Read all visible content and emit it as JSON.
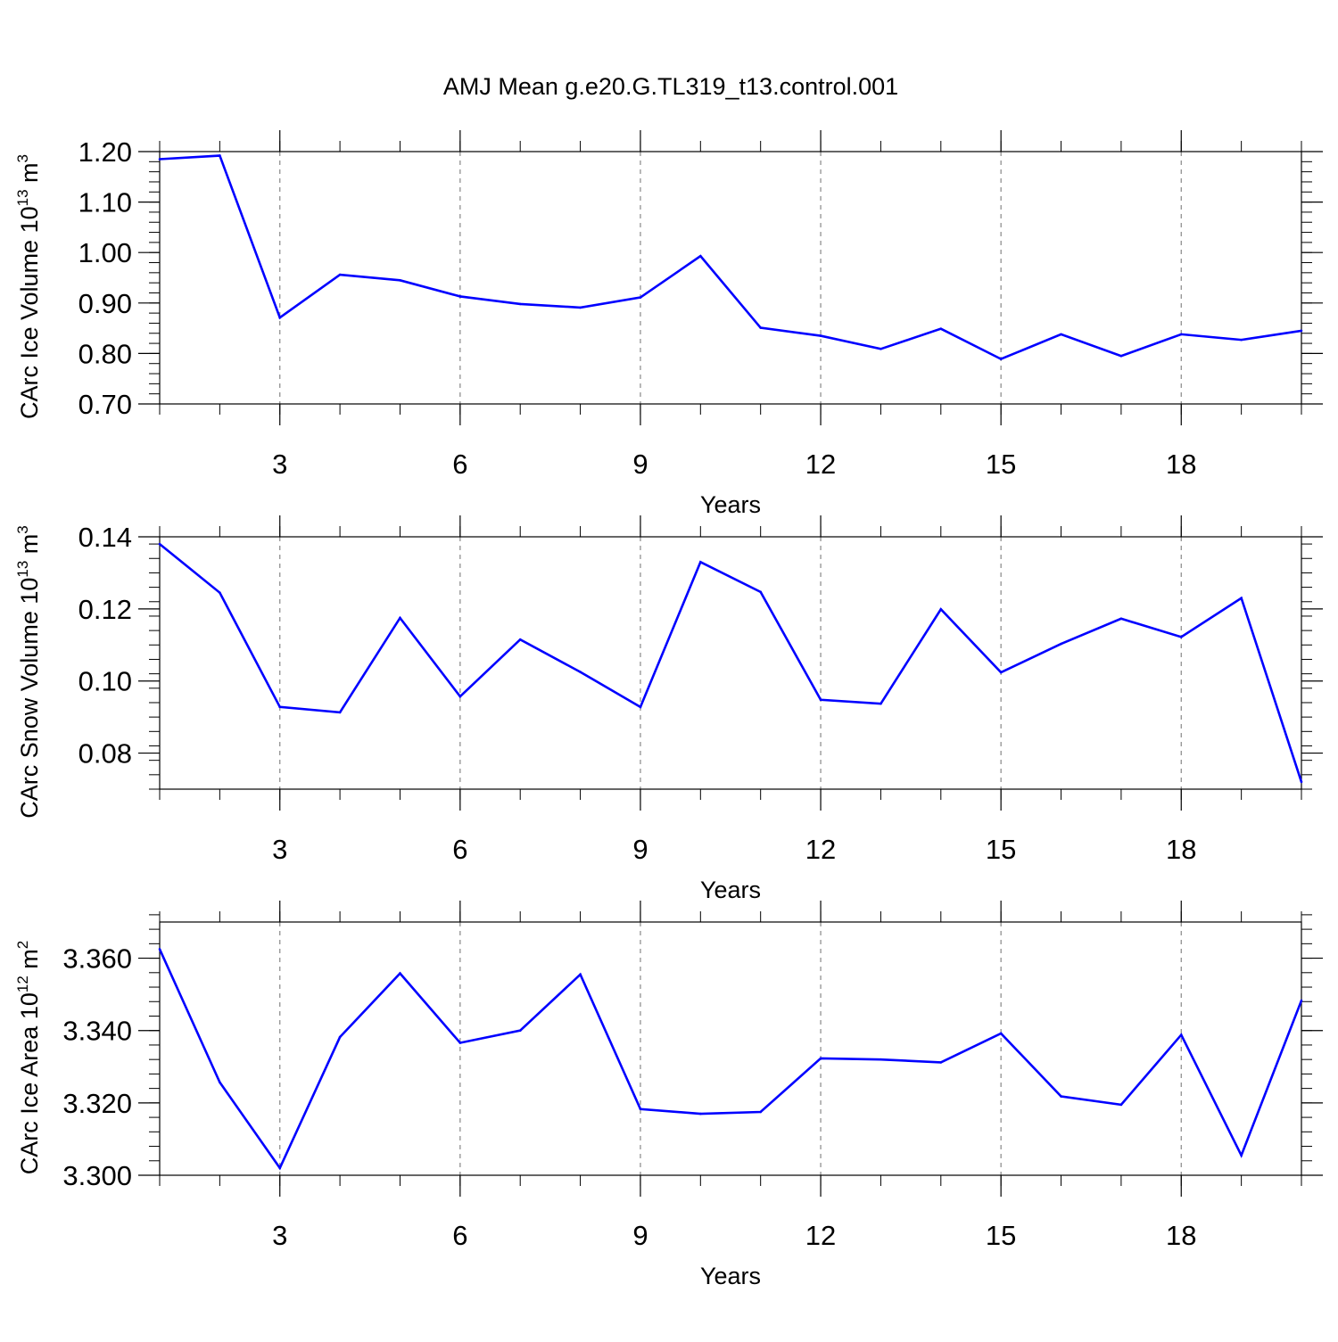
{
  "title": "AMJ Mean g.e20.G.TL319_t13.control.001",
  "line_color": "#0000ff",
  "chart_data": [
    {
      "type": "line",
      "xlabel": "Years",
      "ylabel_main": "CArc Ice Volume 10",
      "ylabel_exp": "13",
      "ylabel_unit": " m",
      "ylabel_unit_exp": "3",
      "xlim": [
        1,
        20
      ],
      "ylim": [
        0.7,
        1.2
      ],
      "xticks": [
        3,
        6,
        9,
        12,
        15,
        18
      ],
      "yticks": [
        0.7,
        0.8,
        0.9,
        1.0,
        1.1,
        1.2
      ],
      "ytick_labels": [
        "0.70",
        "0.80",
        "0.90",
        "1.00",
        "1.10",
        "1.20"
      ],
      "x": [
        1,
        2,
        3,
        4,
        5,
        6,
        7,
        8,
        9,
        10,
        11,
        12,
        13,
        14,
        15,
        16,
        17,
        18,
        19,
        20
      ],
      "values": [
        1.185,
        1.192,
        0.871,
        0.956,
        0.945,
        0.913,
        0.898,
        0.891,
        0.911,
        0.993,
        0.851,
        0.835,
        0.809,
        0.849,
        0.789,
        0.838,
        0.795,
        0.838,
        0.827,
        0.845
      ]
    },
    {
      "type": "line",
      "xlabel": "Years",
      "ylabel_main": "CArc Snow Volume 10",
      "ylabel_exp": "13",
      "ylabel_unit": " m",
      "ylabel_unit_exp": "3",
      "xlim": [
        1,
        20
      ],
      "ylim": [
        0.07,
        0.14
      ],
      "xticks": [
        3,
        6,
        9,
        12,
        15,
        18
      ],
      "yticks": [
        0.08,
        0.1,
        0.12,
        0.14
      ],
      "ytick_labels": [
        "0.08",
        "0.10",
        "0.12",
        "0.14"
      ],
      "x": [
        1,
        2,
        3,
        4,
        5,
        6,
        7,
        8,
        9,
        10,
        11,
        12,
        13,
        14,
        15,
        16,
        17,
        18,
        19,
        20
      ],
      "values": [
        0.138,
        0.1245,
        0.0928,
        0.0913,
        0.1175,
        0.0957,
        0.1115,
        0.1025,
        0.0928,
        0.133,
        0.1247,
        0.0948,
        0.0937,
        0.1199,
        0.1024,
        0.1103,
        0.1173,
        0.1122,
        0.123,
        0.072
      ]
    },
    {
      "type": "line",
      "xlabel": "Years",
      "ylabel_main": "CArc Ice Area 10",
      "ylabel_exp": "12",
      "ylabel_unit": " m",
      "ylabel_unit_exp": "2",
      "xlim": [
        1,
        20
      ],
      "ylim": [
        3.3,
        3.37
      ],
      "xticks": [
        3,
        6,
        9,
        12,
        15,
        18
      ],
      "yticks": [
        3.3,
        3.32,
        3.34,
        3.36
      ],
      "ytick_labels": [
        "3.300",
        "3.320",
        "3.340",
        "3.360"
      ],
      "x": [
        1,
        2,
        3,
        4,
        5,
        6,
        7,
        8,
        9,
        10,
        11,
        12,
        13,
        14,
        15,
        16,
        17,
        18,
        19,
        20
      ],
      "values": [
        3.3625,
        3.3257,
        3.302,
        3.3382,
        3.3558,
        3.3366,
        3.34,
        3.3555,
        3.3183,
        3.317,
        3.3175,
        3.3323,
        3.332,
        3.3312,
        3.3392,
        3.3218,
        3.3195,
        3.3388,
        3.3055,
        3.3483
      ]
    }
  ]
}
